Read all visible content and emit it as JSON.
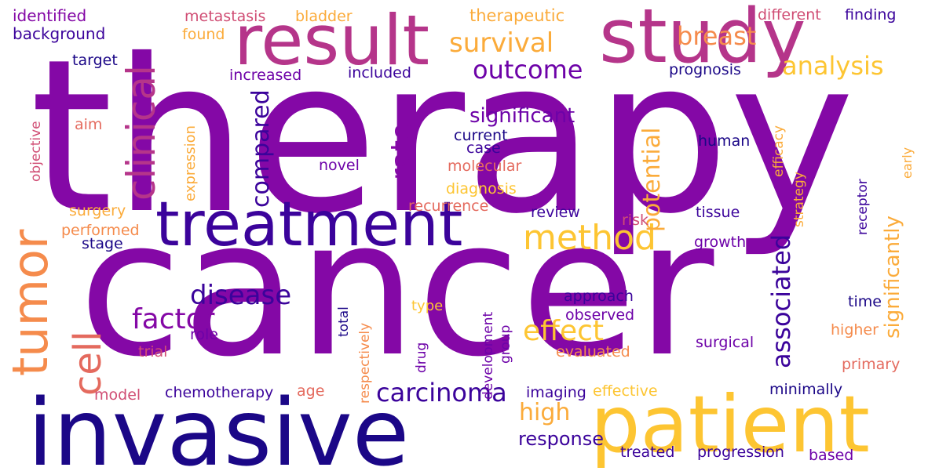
{
  "palette": {
    "navy": "#1b0787",
    "indigo": "#3b039b",
    "purple": "#8408a6",
    "violet": "#6d02a8",
    "magenta": "#b5358a",
    "pink": "#d04d74",
    "salmon": "#e46a5e",
    "orange": "#f58b4c",
    "amber": "#fbab3a",
    "yellow": "#fdc532"
  },
  "words": [
    {
      "t": "therapy",
      "c": "purple"
    },
    {
      "t": "cancer",
      "c": "purple"
    },
    {
      "t": "invasive",
      "c": "navy"
    },
    {
      "t": "patient",
      "c": "yellow"
    },
    {
      "t": "study",
      "c": "magenta"
    },
    {
      "t": "result",
      "c": "magenta"
    },
    {
      "t": "treatment",
      "c": "indigo"
    },
    {
      "t": "tumor",
      "c": "orange"
    },
    {
      "t": "clinical",
      "c": "magenta"
    },
    {
      "t": "cell",
      "c": "salmon"
    },
    {
      "t": "method",
      "c": "yellow"
    },
    {
      "t": "survival",
      "c": "amber"
    },
    {
      "t": "breast",
      "c": "orange"
    },
    {
      "t": "analysis",
      "c": "yellow"
    },
    {
      "t": "outcome",
      "c": "violet"
    },
    {
      "t": "rate",
      "c": "purple"
    },
    {
      "t": "compared",
      "c": "indigo"
    },
    {
      "t": "significant",
      "c": "violet"
    },
    {
      "t": "potential",
      "c": "amber"
    },
    {
      "t": "associated",
      "c": "indigo"
    },
    {
      "t": "disease",
      "c": "indigo"
    },
    {
      "t": "factor",
      "c": "purple"
    },
    {
      "t": "effect",
      "c": "yellow"
    },
    {
      "t": "carcinoma",
      "c": "indigo"
    },
    {
      "t": "high",
      "c": "amber"
    },
    {
      "t": "response",
      "c": "indigo"
    },
    {
      "t": "significantly",
      "c": "amber"
    },
    {
      "t": "identified",
      "c": "purple"
    },
    {
      "t": "background",
      "c": "indigo"
    },
    {
      "t": "metastasis",
      "c": "pink"
    },
    {
      "t": "bladder",
      "c": "amber"
    },
    {
      "t": "found",
      "c": "amber"
    },
    {
      "t": "therapeutic",
      "c": "amber"
    },
    {
      "t": "different",
      "c": "pink"
    },
    {
      "t": "finding",
      "c": "indigo"
    },
    {
      "t": "target",
      "c": "navy"
    },
    {
      "t": "increased",
      "c": "violet"
    },
    {
      "t": "included",
      "c": "indigo"
    },
    {
      "t": "prognosis",
      "c": "navy"
    },
    {
      "t": "aim",
      "c": "salmon"
    },
    {
      "t": "objective",
      "c": "pink"
    },
    {
      "t": "expression",
      "c": "amber"
    },
    {
      "t": "novel",
      "c": "violet"
    },
    {
      "t": "current",
      "c": "navy"
    },
    {
      "t": "case",
      "c": "indigo"
    },
    {
      "t": "molecular",
      "c": "salmon"
    },
    {
      "t": "diagnosis",
      "c": "yellow"
    },
    {
      "t": "human",
      "c": "navy"
    },
    {
      "t": "efficacy",
      "c": "amber"
    },
    {
      "t": "early",
      "c": "amber"
    },
    {
      "t": "strategy",
      "c": "amber"
    },
    {
      "t": "receptor",
      "c": "indigo"
    },
    {
      "t": "surgery",
      "c": "amber"
    },
    {
      "t": "performed",
      "c": "orange"
    },
    {
      "t": "stage",
      "c": "navy"
    },
    {
      "t": "recurrence",
      "c": "salmon"
    },
    {
      "t": "review",
      "c": "indigo"
    },
    {
      "t": "risk",
      "c": "pink"
    },
    {
      "t": "tissue",
      "c": "indigo"
    },
    {
      "t": "growth",
      "c": "violet"
    },
    {
      "t": "respectively",
      "c": "orange"
    },
    {
      "t": "development",
      "c": "violet"
    },
    {
      "t": "type",
      "c": "yellow"
    },
    {
      "t": "approach",
      "c": "indigo"
    },
    {
      "t": "observed",
      "c": "violet"
    },
    {
      "t": "time",
      "c": "navy"
    },
    {
      "t": "total",
      "c": "navy"
    },
    {
      "t": "group",
      "c": "violet"
    },
    {
      "t": "drug",
      "c": "violet"
    },
    {
      "t": "role",
      "c": "violet"
    },
    {
      "t": "trial",
      "c": "pink"
    },
    {
      "t": "higher",
      "c": "orange"
    },
    {
      "t": "surgical",
      "c": "violet"
    },
    {
      "t": "evaluated",
      "c": "orange"
    },
    {
      "t": "primary",
      "c": "salmon"
    },
    {
      "t": "model",
      "c": "pink"
    },
    {
      "t": "chemotherapy",
      "c": "indigo"
    },
    {
      "t": "age",
      "c": "salmon"
    },
    {
      "t": "imaging",
      "c": "indigo"
    },
    {
      "t": "effective",
      "c": "yellow"
    },
    {
      "t": "minimally",
      "c": "navy"
    },
    {
      "t": "treated",
      "c": "indigo"
    },
    {
      "t": "progression",
      "c": "indigo"
    },
    {
      "t": "based",
      "c": "violet"
    }
  ]
}
